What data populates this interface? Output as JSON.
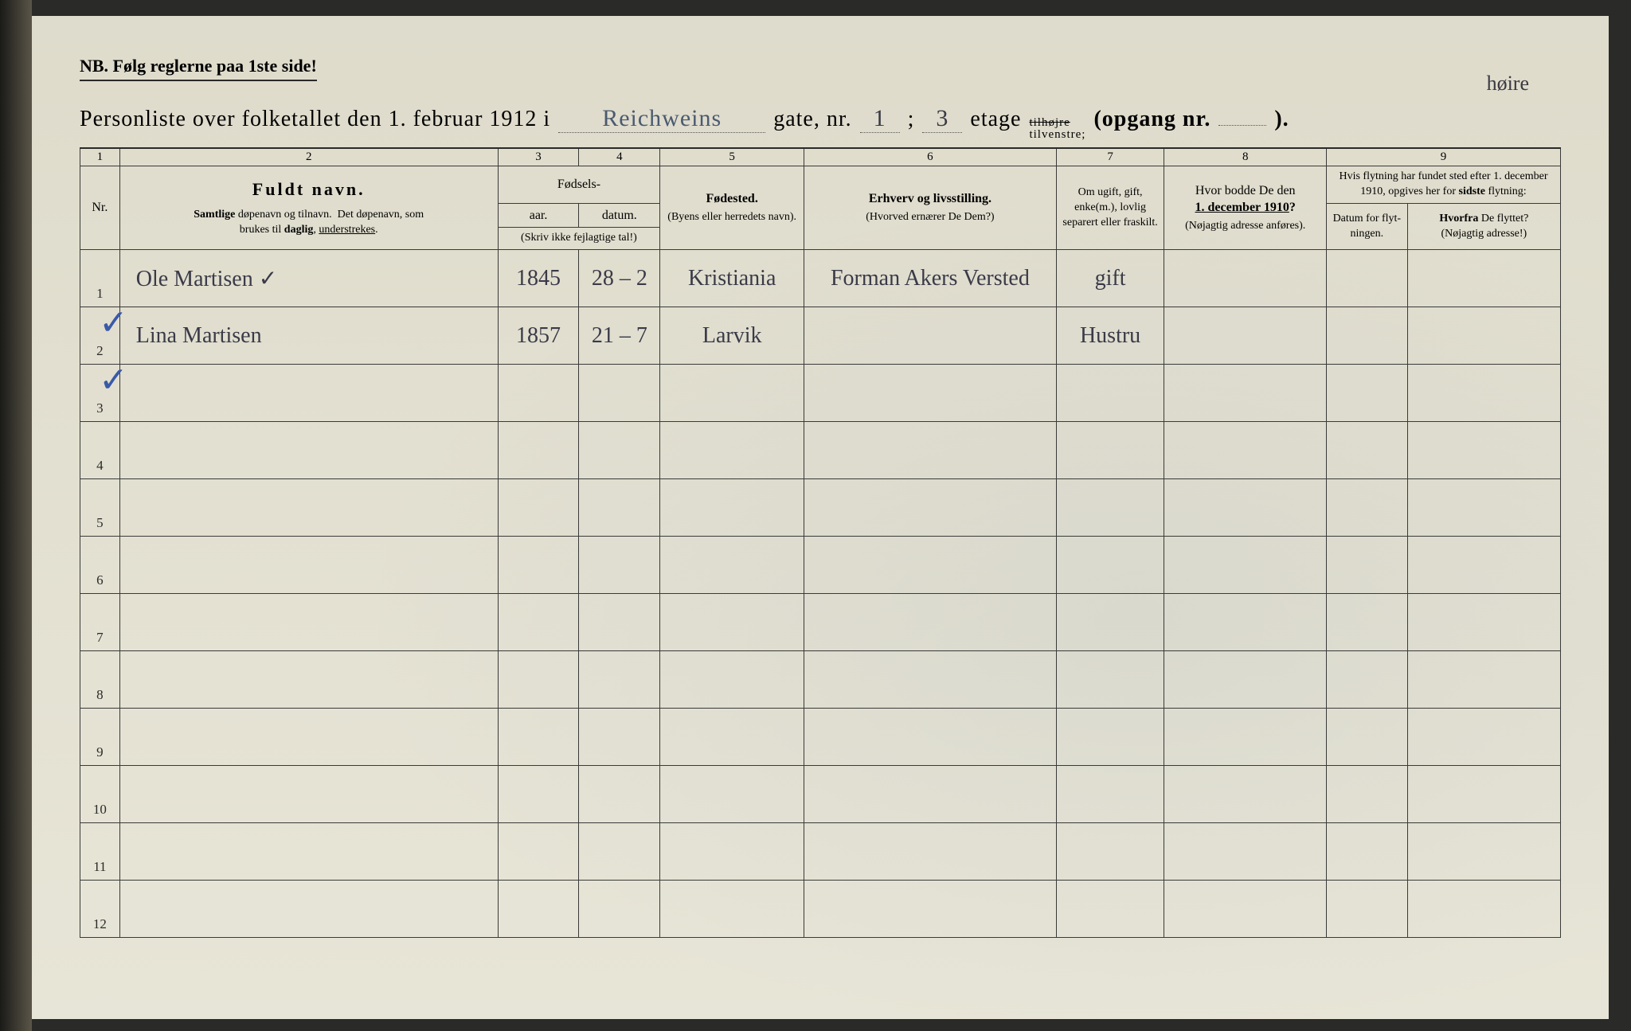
{
  "notice": "NB.   Følg reglerne paa 1ste side!",
  "header": {
    "lead": "Personliste over folketallet den 1. februar 1912 i",
    "street": "Reichweins",
    "gate_label": "gate, nr.",
    "gate_nr": "1",
    "semicolon": ";",
    "etage_nr": "3",
    "etage_label": "etage",
    "tilhoire": "tilhøjre",
    "tilvenstre": "tilvenstre;",
    "opgang": "(opgang  nr.",
    "opgang_close": ").",
    "hoire_annot": "høire"
  },
  "columns": {
    "nums": [
      "1",
      "2",
      "3",
      "4",
      "5",
      "6",
      "7",
      "8",
      "9"
    ],
    "nr": "Nr.",
    "fuldt": "Fuldt navn.",
    "fuldt_sub": "Samtlige døpenavn og tilnavn.  Det døpenavn, som brukes til daglig, understrekes.",
    "fodsels": "Fødsels-",
    "aar": "aar.",
    "datum": "datum.",
    "fodsels_note": "(Skriv ikke fejlagtige tal!)",
    "fodested": "Fødested.",
    "fodested_sub": "(Byens eller herredets navn).",
    "erhverv": "Erhverv og livsstilling.",
    "erhverv_sub": "(Hvorved ernærer De Dem?)",
    "ugift": "Om ugift, gift, enke(m.), lovlig separert eller fraskilt.",
    "bodde": "Hvor bodde De den 1. december 1910?",
    "bodde_sub": "(Nøjagtig adresse anføres).",
    "flytning": "Hvis flytning har fundet sted efter 1. december 1910, opgives her for sidste flytning:",
    "flyt_datum": "Datum for flyt-ningen.",
    "flyt_hvorfra": "Hvorfra De flyttet? (Nøjagtig adresse!)"
  },
  "rows": [
    {
      "nr": "1",
      "check": "✓",
      "name": "Ole   Martisen        ✓",
      "year": "1845",
      "date": "28 – 2",
      "place": "Kristiania",
      "occupation": "Forman Akers Versted",
      "status": "gift"
    },
    {
      "nr": "2",
      "check": "✓",
      "name": "Lina   Martisen",
      "year": "1857",
      "date": "21 – 7",
      "place": "Larvik",
      "occupation": "",
      "status": "Hustru"
    },
    {
      "nr": "3"
    },
    {
      "nr": "4"
    },
    {
      "nr": "5"
    },
    {
      "nr": "6"
    },
    {
      "nr": "7"
    },
    {
      "nr": "8"
    },
    {
      "nr": "9"
    },
    {
      "nr": "10"
    },
    {
      "nr": "11"
    },
    {
      "nr": "12"
    }
  ],
  "colors": {
    "paper": "#e8e6d8",
    "ink": "#2a2a28",
    "script": "#3a3a48",
    "check": "#3a5aa8"
  }
}
